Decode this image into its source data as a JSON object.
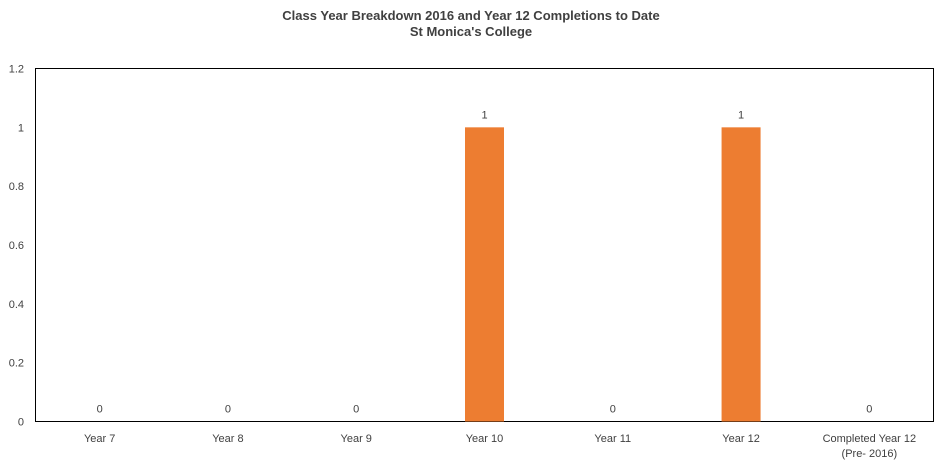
{
  "chart_data": {
    "type": "bar",
    "title": "Class Year Breakdown 2016 and Year 12 Completions to Date",
    "subtitle": "St Monica's College",
    "xlabel": "",
    "ylabel": "",
    "categories": [
      "Year 7",
      "Year 8",
      "Year 9",
      "Year 10",
      "Year 11",
      "Year 12",
      "Completed Year 12 (Pre- 2016)"
    ],
    "category_lines": [
      [
        "Year 7"
      ],
      [
        "Year 8"
      ],
      [
        "Year 9"
      ],
      [
        "Year 10"
      ],
      [
        "Year 11"
      ],
      [
        "Year 12"
      ],
      [
        "Completed Year 12",
        "(Pre- 2016)"
      ]
    ],
    "values": [
      0,
      0,
      0,
      1,
      0,
      1,
      0
    ],
    "data_labels": [
      "0",
      "0",
      "0",
      "1",
      "0",
      "1",
      "0"
    ],
    "ylim": [
      0,
      1.2
    ],
    "yticks": [
      0,
      0.2,
      0.4,
      0.6,
      0.8,
      1,
      1.2
    ],
    "ytick_labels": [
      "0",
      "0.2",
      "0.4",
      "0.6",
      "0.8",
      "1",
      "1.2"
    ],
    "grid": false,
    "legend": "none",
    "bar_color": "#ED7D31"
  }
}
